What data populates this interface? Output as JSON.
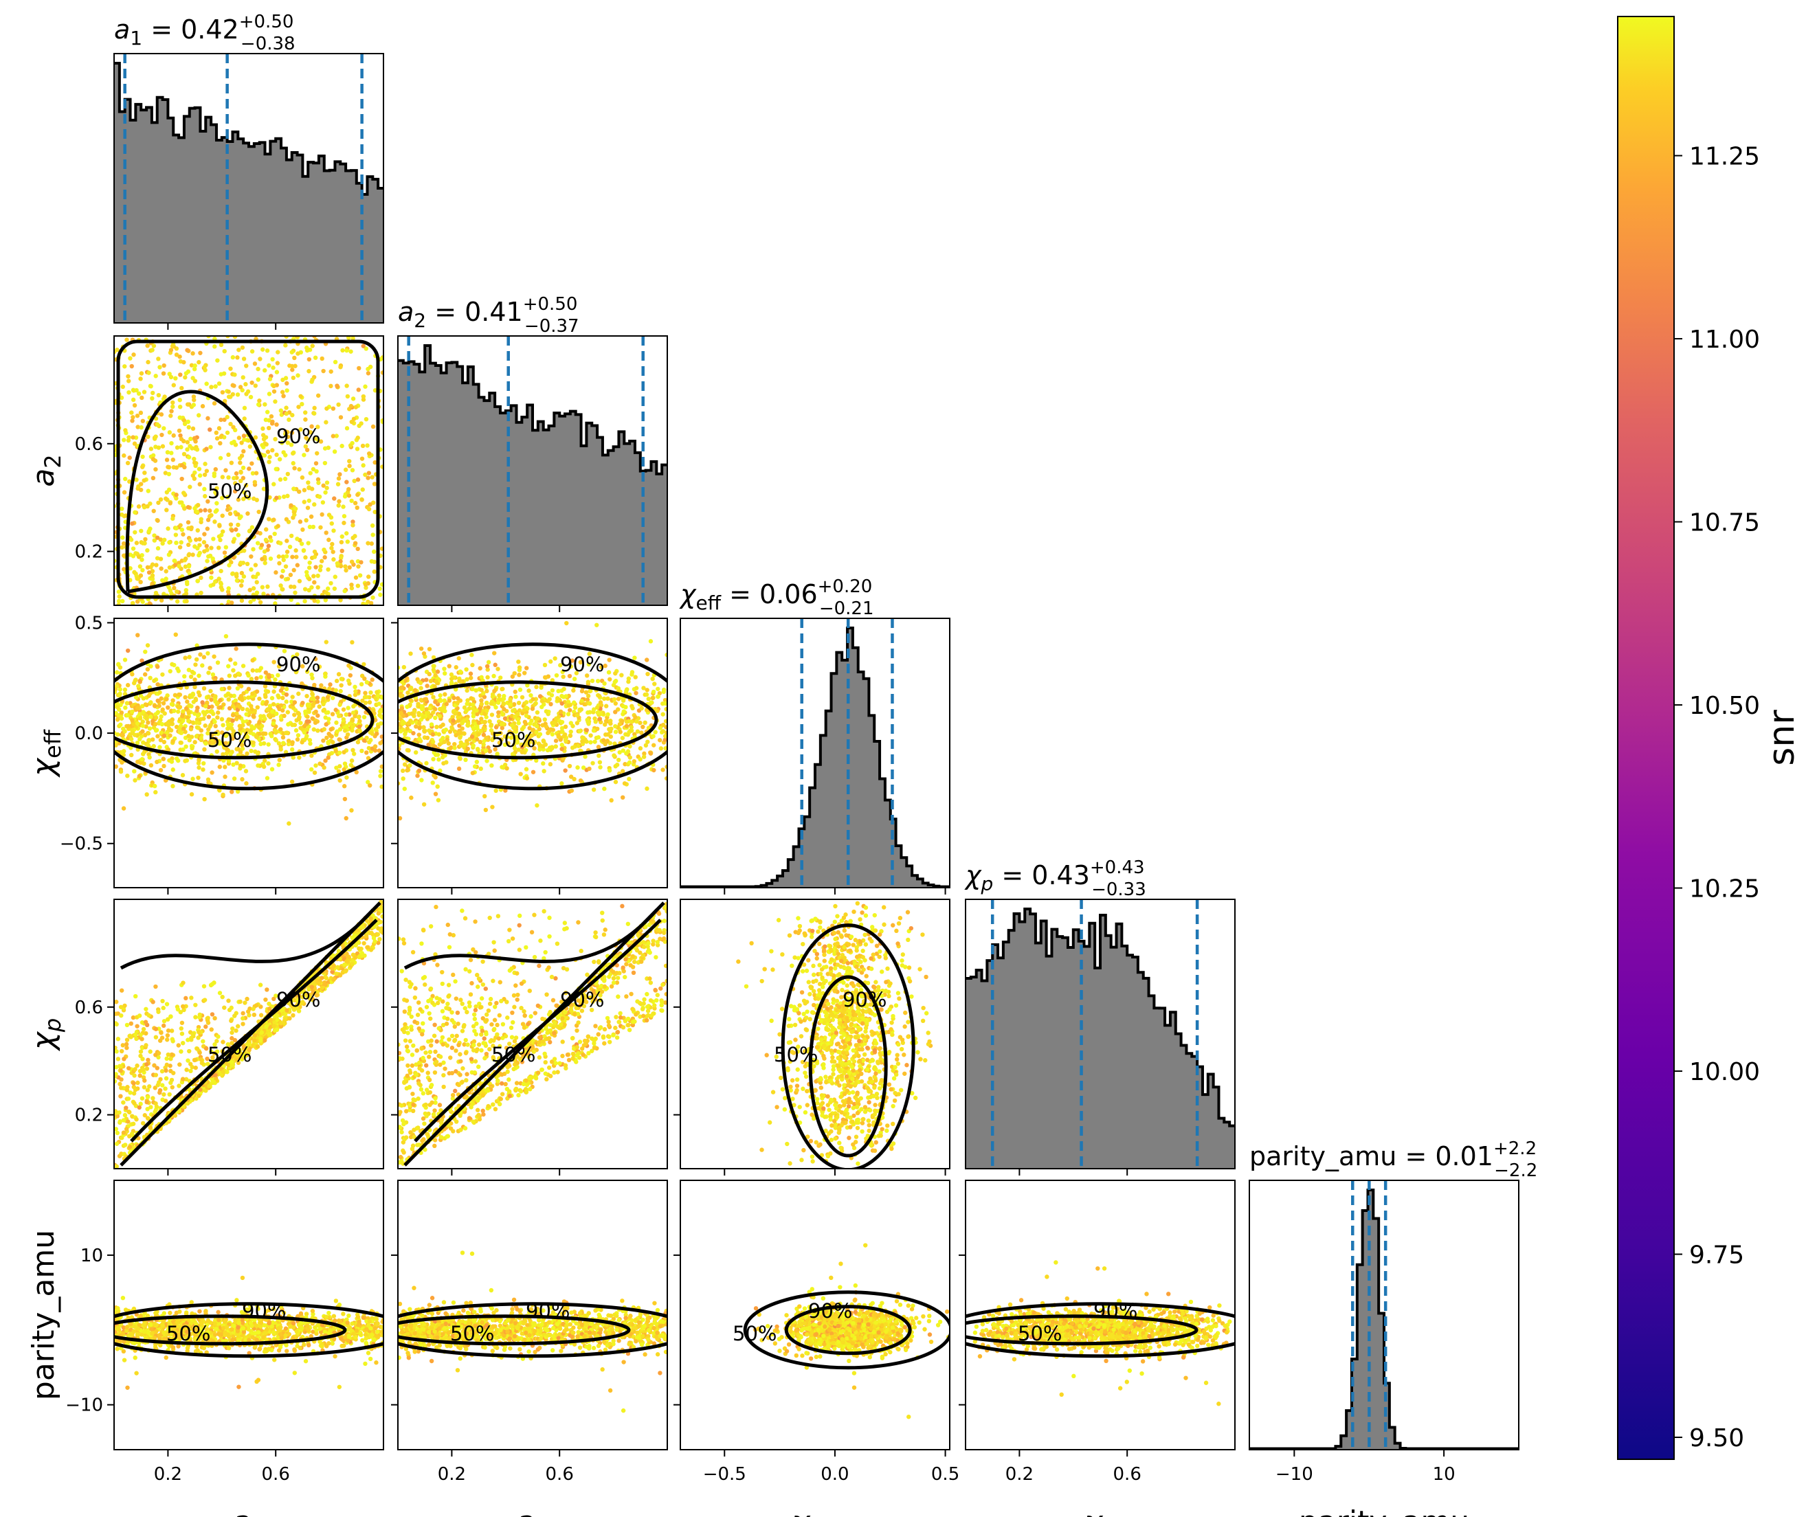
{
  "chart_data": {
    "type": "scatter",
    "subtype": "corner-plot",
    "parameters": [
      {
        "key": "a1",
        "label_base": "a",
        "label_sub": "1",
        "sub_italic": false,
        "range": [
          0,
          1
        ],
        "ticks": [
          0.2,
          0.6
        ],
        "tick_labels": [
          "0.2",
          "0.6"
        ],
        "title_prefix": "",
        "title_median": "0.42",
        "title_plus": "+0.50",
        "title_minus": "−0.38",
        "quantiles": [
          0.04,
          0.42,
          0.92
        ],
        "dist": {
          "type": "decline",
          "end": 0.62
        }
      },
      {
        "key": "a2",
        "label_base": "a",
        "label_sub": "2",
        "sub_italic": false,
        "range": [
          0,
          1
        ],
        "ticks": [
          0.2,
          0.6
        ],
        "tick_labels": [
          "0.2",
          "0.6"
        ],
        "title_prefix": "",
        "title_median": "0.41",
        "title_plus": "+0.50",
        "title_minus": "−0.37",
        "quantiles": [
          0.04,
          0.41,
          0.91
        ],
        "dist": {
          "type": "decline",
          "end": 0.55
        }
      },
      {
        "key": "chi_eff",
        "label_base": "χ",
        "label_sub": "eff",
        "sub_italic": false,
        "range": [
          -0.7,
          0.52
        ],
        "ticks": [
          -0.5,
          0.0,
          0.5
        ],
        "tick_labels": [
          "−0.5",
          "0.0",
          "0.5"
        ],
        "title_prefix": "",
        "title_median": "0.06",
        "title_plus": "+0.20",
        "title_minus": "−0.21",
        "quantiles": [
          -0.15,
          0.06,
          0.26
        ],
        "dist": {
          "type": "gauss",
          "mu": 0.06,
          "sigma": 0.125
        }
      },
      {
        "key": "chi_p",
        "label_base": "χ",
        "label_sub": "p",
        "sub_italic": true,
        "range": [
          0,
          1
        ],
        "ticks": [
          0.2,
          0.6
        ],
        "tick_labels": [
          "0.2",
          "0.6"
        ],
        "title_prefix": "",
        "title_median": "0.43",
        "title_plus": "+0.43",
        "title_minus": "−0.33",
        "quantiles": [
          0.1,
          0.43,
          0.86
        ],
        "dist": {
          "type": "hump",
          "peak": 0.35
        }
      },
      {
        "key": "parity_amu",
        "label_base": "parity_amu",
        "label_sub": "",
        "sub_italic": false,
        "range": [
          -16,
          20
        ],
        "ticks": [
          -10,
          10
        ],
        "tick_labels": [
          "−10",
          "10"
        ],
        "title_prefix": "parity_amu",
        "title_median": "0.01",
        "title_plus": "+2.2",
        "title_minus": "−2.2",
        "quantiles": [
          -2.2,
          0.01,
          2.2
        ],
        "dist": {
          "type": "gauss",
          "mu": 0.0,
          "sigma": 1.4
        }
      }
    ],
    "axis_tick_labels": {
      "y_a2": [
        "0.2",
        "0.6"
      ],
      "y_chi_eff": [
        "−0.5",
        "0.0",
        "0.5"
      ],
      "y_chi_p": [
        "0.2",
        "0.6"
      ],
      "y_parity_amu": [
        "−10",
        "10"
      ]
    },
    "contour_levels": [
      "50%",
      "90%"
    ],
    "colorbar": {
      "label": "snr",
      "range": [
        9.47,
        11.44
      ],
      "ticks": [
        9.5,
        9.75,
        10.0,
        10.25,
        10.5,
        10.75,
        11.0,
        11.25
      ],
      "tick_labels": [
        "9.50",
        "9.75",
        "10.00",
        "10.25",
        "10.50",
        "10.75",
        "11.00",
        "11.25"
      ],
      "colormap": "plasma"
    },
    "colors": {
      "hist_fill": "#808080",
      "hist_edge": "#000000",
      "quantile_line": "#1f77b4",
      "contour": "#000000"
    }
  }
}
